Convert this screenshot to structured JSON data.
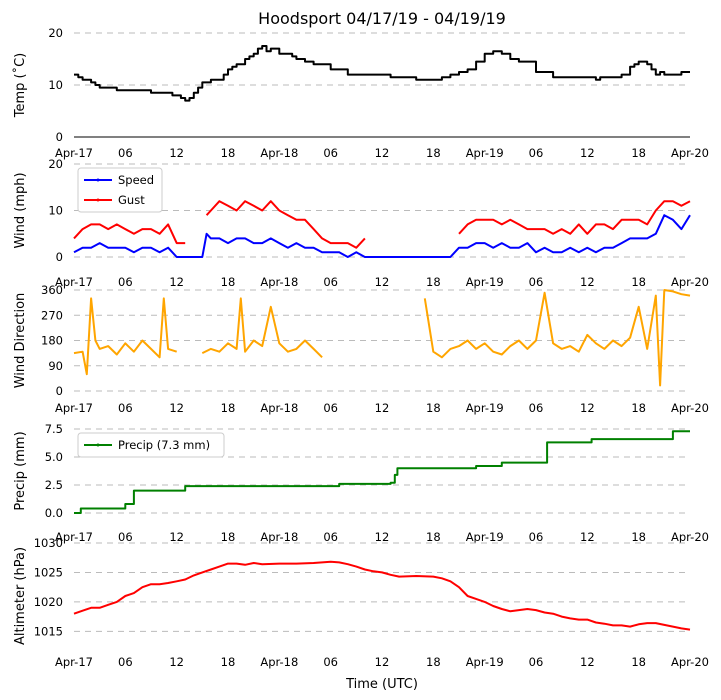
{
  "chart_data": [
    {
      "type": "line",
      "title": "Hoodsport 04/17/19 - 04/19/19",
      "ylabel": "Temp ($^\\circ$C)",
      "ylim": [
        0,
        20
      ],
      "yticks": [
        0,
        10,
        20
      ],
      "xlabel": "",
      "xlim_hours": [
        0,
        72
      ],
      "xtick_hours": [
        0,
        6,
        12,
        18,
        24,
        30,
        36,
        42,
        48,
        54,
        60,
        66,
        72
      ],
      "xtick_labels": [
        "Apr-17",
        "06",
        "12",
        "18",
        "Apr-18",
        "06",
        "12",
        "18",
        "Apr-19",
        "06",
        "12",
        "18",
        "Apr-20"
      ],
      "grid": true,
      "series": [
        {
          "name": "Temp",
          "color": "#000000",
          "step": true,
          "x": [
            0,
            0.5,
            1,
            2,
            2.5,
            3,
            3.5,
            4,
            5,
            6,
            9,
            10,
            11.5,
            12.5,
            13,
            13.5,
            14,
            14.5,
            15,
            16,
            17,
            17.5,
            18,
            18.5,
            19,
            20,
            20.5,
            21,
            21.5,
            22,
            22.5,
            23,
            24,
            25,
            25.5,
            26,
            27,
            28,
            30,
            32,
            33,
            34,
            37,
            40,
            41,
            42,
            43,
            44,
            45,
            45.5,
            46,
            47,
            48,
            49,
            49.5,
            50,
            51,
            52,
            54,
            56,
            58,
            60,
            61,
            61.5,
            62,
            64,
            65,
            65.5,
            66,
            67,
            67.5,
            68,
            68.5,
            69,
            70,
            71,
            72
          ],
          "values": [
            12,
            11.5,
            11,
            10.5,
            10,
            9.5,
            9.5,
            9.5,
            9,
            9,
            8.5,
            8.5,
            8,
            7.5,
            7,
            7.5,
            8.5,
            9.5,
            10.5,
            11,
            11,
            12,
            13,
            13.5,
            14,
            15,
            15.5,
            16,
            17,
            17.5,
            16.5,
            17,
            16,
            16,
            15.5,
            15,
            14.5,
            14,
            13,
            12,
            12,
            12,
            11.5,
            11,
            11,
            11,
            11.5,
            12,
            12.5,
            12.5,
            13,
            14.5,
            16,
            16.5,
            16.5,
            16,
            15,
            14.5,
            12.5,
            11.5,
            11.5,
            11.5,
            11,
            11.5,
            11.5,
            12,
            13.5,
            14,
            14.5,
            14,
            13,
            12,
            12.5,
            12,
            12,
            12.5,
            12.5
          ]
        }
      ]
    },
    {
      "type": "line",
      "ylabel": "Wind (mph)",
      "ylim": [
        0,
        20
      ],
      "yticks": [
        0,
        10,
        20
      ],
      "xlim_hours": [
        0,
        72
      ],
      "xtick_labels": [
        "Apr-17",
        "06",
        "12",
        "18",
        "Apr-18",
        "06",
        "12",
        "18",
        "Apr-19",
        "06",
        "12",
        "18",
        "Apr-20"
      ],
      "grid": true,
      "legend": "top-left",
      "series": [
        {
          "name": "Speed",
          "color": "#0000ff",
          "x": [
            0,
            1,
            2,
            3,
            4,
            5,
            6,
            7,
            8,
            9,
            10,
            11,
            12,
            13,
            14,
            15,
            15.5,
            16,
            17,
            18,
            19,
            20,
            21,
            22,
            23,
            24,
            25,
            26,
            27,
            28,
            29,
            30,
            31,
            32,
            33,
            34,
            36,
            38,
            40,
            42,
            44,
            45,
            46,
            47,
            48,
            49,
            50,
            51,
            52,
            53,
            54,
            55,
            56,
            57,
            58,
            59,
            60,
            61,
            62,
            63,
            64,
            65,
            66,
            67,
            68,
            69,
            70,
            71,
            72
          ],
          "values": [
            1,
            2,
            2,
            3,
            2,
            2,
            2,
            1,
            2,
            2,
            1,
            2,
            0,
            0,
            0,
            0,
            5,
            4,
            4,
            3,
            4,
            4,
            3,
            3,
            4,
            3,
            2,
            3,
            2,
            2,
            1,
            1,
            1,
            0,
            1,
            0,
            0,
            0,
            0,
            0,
            0,
            2,
            2,
            3,
            3,
            2,
            3,
            2,
            2,
            3,
            1,
            2,
            1,
            1,
            2,
            1,
            2,
            1,
            2,
            2,
            3,
            4,
            4,
            4,
            5,
            9,
            8,
            6,
            9
          ]
        },
        {
          "name": "Gust",
          "color": "#ff0000",
          "x": [
            0,
            1,
            2,
            3,
            4,
            5,
            6,
            7,
            8,
            9,
            10,
            11,
            12,
            13,
            15,
            15.5,
            16,
            17,
            18,
            19,
            20,
            21,
            22,
            23,
            24,
            25,
            26,
            27,
            28,
            29,
            30,
            31,
            32,
            33,
            34,
            44,
            45,
            46,
            47,
            48,
            49,
            50,
            51,
            52,
            53,
            54,
            55,
            56,
            57,
            58,
            59,
            60,
            61,
            62,
            63,
            64,
            65,
            66,
            67,
            68,
            69,
            70,
            71,
            72
          ],
          "values": [
            4,
            6,
            7,
            7,
            6,
            7,
            6,
            5,
            6,
            6,
            5,
            7,
            3,
            3,
            null,
            9,
            10,
            12,
            11,
            10,
            12,
            11,
            10,
            12,
            10,
            9,
            8,
            8,
            6,
            4,
            3,
            3,
            3,
            2,
            4,
            null,
            5,
            7,
            8,
            8,
            8,
            7,
            8,
            7,
            6,
            6,
            6,
            5,
            6,
            5,
            7,
            5,
            7,
            7,
            6,
            8,
            8,
            8,
            7,
            10,
            12,
            12,
            11,
            12
          ]
        }
      ]
    },
    {
      "type": "line",
      "ylabel": "Wind Direction",
      "ylim": [
        0,
        360
      ],
      "yticks": [
        0,
        90,
        180,
        270,
        360
      ],
      "xlim_hours": [
        0,
        72
      ],
      "xtick_labels": [
        "Apr-17",
        "06",
        "12",
        "18",
        "Apr-18",
        "06",
        "12",
        "18",
        "Apr-19",
        "06",
        "12",
        "18",
        "Apr-20"
      ],
      "grid": true,
      "series": [
        {
          "name": "Direction",
          "color": "#ffa500",
          "x": [
            0,
            1,
            1.5,
            2,
            2.5,
            3,
            4,
            5,
            6,
            7,
            8,
            9,
            10,
            10.5,
            11,
            12,
            null,
            15,
            16,
            17,
            18,
            19,
            19.5,
            20,
            21,
            22,
            23,
            24,
            25,
            26,
            27,
            28,
            29,
            null,
            41,
            42,
            43,
            44,
            45,
            46,
            47,
            48,
            49,
            50,
            51,
            52,
            53,
            54,
            55,
            56,
            57,
            58,
            59,
            60,
            61,
            62,
            63,
            64,
            65,
            66,
            67,
            68,
            68.5,
            69,
            70,
            71,
            72
          ],
          "values": [
            135,
            140,
            60,
            330,
            180,
            150,
            160,
            130,
            170,
            140,
            180,
            150,
            120,
            330,
            150,
            140,
            null,
            135,
            150,
            140,
            170,
            150,
            330,
            140,
            180,
            160,
            300,
            170,
            140,
            150,
            180,
            150,
            120,
            null,
            330,
            140,
            120,
            150,
            160,
            180,
            150,
            170,
            140,
            130,
            160,
            180,
            150,
            180,
            350,
            170,
            150,
            160,
            140,
            200,
            170,
            150,
            180,
            160,
            190,
            300,
            150,
            340,
            20,
            360,
            355,
            345,
            340
          ]
        }
      ]
    },
    {
      "type": "line",
      "ylabel": "Precip (mm)",
      "ylim": [
        0,
        7.5
      ],
      "yticks": [
        0.0,
        2.5,
        5.0,
        7.5
      ],
      "ytick_labels": [
        "0.0",
        "2.5",
        "5.0",
        "7.5"
      ],
      "xlim_hours": [
        0,
        72
      ],
      "xtick_labels": [
        "Apr-17",
        "06",
        "12",
        "18",
        "Apr-18",
        "06",
        "12",
        "18",
        "Apr-19",
        "06",
        "12",
        "18",
        "Apr-20"
      ],
      "grid": true,
      "legend": "top-left",
      "series": [
        {
          "name": "Precip (7.3 mm)",
          "color": "#008000",
          "step": true,
          "x": [
            0,
            0.8,
            6,
            7,
            13,
            24,
            31,
            37,
            37.5,
            37.8,
            42,
            47,
            50,
            55,
            55.3,
            59.5,
            60.5,
            68,
            70,
            72
          ],
          "values": [
            0,
            0.4,
            0.8,
            2.0,
            2.4,
            2.4,
            2.6,
            2.7,
            3.4,
            4.0,
            4.0,
            4.2,
            4.5,
            4.5,
            6.3,
            6.3,
            6.6,
            6.6,
            7.3,
            7.3
          ]
        }
      ]
    },
    {
      "type": "line",
      "xlabel": "Time (UTC)",
      "ylabel": "Altimeter (hPa)",
      "ylim": [
        1012,
        1030
      ],
      "yticks": [
        1015,
        1020,
        1025,
        1030
      ],
      "xlim_hours": [
        0,
        72
      ],
      "xtick_labels": [
        "Apr-17",
        "06",
        "12",
        "18",
        "Apr-18",
        "06",
        "12",
        "18",
        "Apr-19",
        "06",
        "12",
        "18",
        "Apr-20"
      ],
      "grid": true,
      "series": [
        {
          "name": "Altimeter",
          "color": "#ff0000",
          "x": [
            0,
            1,
            2,
            3,
            4,
            5,
            6,
            7,
            8,
            9,
            10,
            11,
            12,
            13,
            14,
            15,
            16,
            17,
            18,
            19,
            20,
            21,
            22,
            24,
            26,
            28,
            30,
            31,
            32,
            33,
            34,
            35,
            36,
            37,
            38,
            40,
            42,
            43,
            44,
            45,
            46,
            47,
            48,
            49,
            50,
            51,
            52,
            53,
            54,
            55,
            56,
            57,
            58,
            59,
            60,
            61,
            62,
            63,
            64,
            65,
            66,
            67,
            68,
            69,
            70,
            71,
            72
          ],
          "values": [
            1018,
            1018.5,
            1019,
            1019,
            1019.5,
            1020,
            1021,
            1021.5,
            1022.5,
            1023,
            1023,
            1023.2,
            1023.5,
            1023.8,
            1024.5,
            1025,
            1025.5,
            1026,
            1026.5,
            1026.5,
            1026.3,
            1026.6,
            1026.4,
            1026.5,
            1026.5,
            1026.6,
            1026.8,
            1026.7,
            1026.4,
            1026,
            1025.5,
            1025.2,
            1025,
            1024.6,
            1024.3,
            1024.4,
            1024.3,
            1024,
            1023.5,
            1022.5,
            1021,
            1020.5,
            1020,
            1019.3,
            1018.8,
            1018.4,
            1018.6,
            1018.8,
            1018.6,
            1018.2,
            1018.0,
            1017.5,
            1017.2,
            1017.0,
            1017.0,
            1016.5,
            1016.3,
            1016.0,
            1016.0,
            1015.8,
            1016.2,
            1016.4,
            1016.4,
            1016.1,
            1015.8,
            1015.5,
            1015.3
          ]
        }
      ]
    }
  ]
}
